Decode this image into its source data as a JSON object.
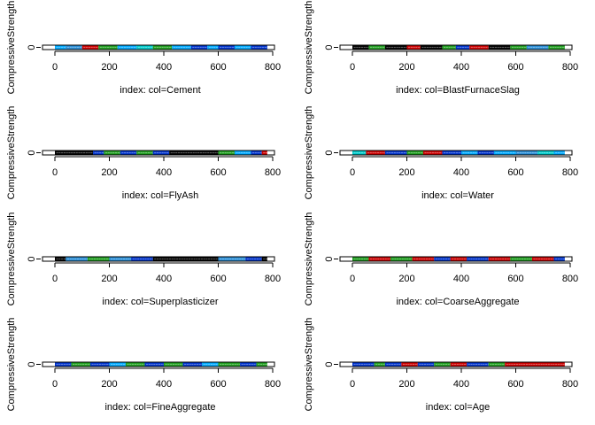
{
  "chart_data": [
    {
      "type": "scatter",
      "title": "",
      "xlabel": "index: col=Cement",
      "ylabel": "CompressiveStrength",
      "xlim": [
        -30,
        810
      ],
      "x_ticks": [
        "0",
        "200",
        "400",
        "600",
        "800"
      ],
      "y_ticks": [
        "0"
      ],
      "strip_colors": [
        {
          "from": 0,
          "to": 40,
          "color": "#00aaff"
        },
        {
          "from": 40,
          "to": 100,
          "color": "#2a8fd8"
        },
        {
          "from": 100,
          "to": 160,
          "color": "#cc0000"
        },
        {
          "from": 160,
          "to": 230,
          "color": "#1f9e1f"
        },
        {
          "from": 230,
          "to": 300,
          "color": "#00aaff"
        },
        {
          "from": 300,
          "to": 360,
          "color": "#00cccc"
        },
        {
          "from": 360,
          "to": 430,
          "color": "#1f9e1f"
        },
        {
          "from": 430,
          "to": 500,
          "color": "#00aaff"
        },
        {
          "from": 500,
          "to": 560,
          "color": "#0033cc"
        },
        {
          "from": 560,
          "to": 600,
          "color": "#00aaff"
        },
        {
          "from": 600,
          "to": 660,
          "color": "#0033cc"
        },
        {
          "from": 660,
          "to": 720,
          "color": "#00aaff"
        },
        {
          "from": 720,
          "to": 780,
          "color": "#0033cc"
        }
      ]
    },
    {
      "type": "scatter",
      "title": "",
      "xlabel": "index: col=BlastFurnaceSlag",
      "ylabel": "CompressiveStrength",
      "xlim": [
        -30,
        810
      ],
      "x_ticks": [
        "0",
        "200",
        "400",
        "600",
        "800"
      ],
      "y_ticks": [
        "0"
      ],
      "strip_colors": [
        {
          "from": 0,
          "to": 60,
          "color": "#000000"
        },
        {
          "from": 60,
          "to": 120,
          "color": "#1f9e1f"
        },
        {
          "from": 120,
          "to": 200,
          "color": "#000000"
        },
        {
          "from": 200,
          "to": 250,
          "color": "#cc0000"
        },
        {
          "from": 250,
          "to": 330,
          "color": "#000000"
        },
        {
          "from": 330,
          "to": 380,
          "color": "#1f9e1f"
        },
        {
          "from": 380,
          "to": 430,
          "color": "#0033cc"
        },
        {
          "from": 430,
          "to": 500,
          "color": "#cc0000"
        },
        {
          "from": 500,
          "to": 580,
          "color": "#000000"
        },
        {
          "from": 580,
          "to": 640,
          "color": "#1f9e1f"
        },
        {
          "from": 640,
          "to": 720,
          "color": "#2a8fd8"
        },
        {
          "from": 720,
          "to": 780,
          "color": "#1f9e1f"
        }
      ]
    },
    {
      "type": "scatter",
      "title": "",
      "xlabel": "index: col=FlyAsh",
      "ylabel": "CompressiveStrength",
      "xlim": [
        -30,
        810
      ],
      "x_ticks": [
        "0",
        "200",
        "400",
        "600",
        "800"
      ],
      "y_ticks": [
        "0"
      ],
      "strip_colors": [
        {
          "from": 0,
          "to": 140,
          "color": "#000000"
        },
        {
          "from": 140,
          "to": 180,
          "color": "#0033cc"
        },
        {
          "from": 180,
          "to": 240,
          "color": "#1f9e1f"
        },
        {
          "from": 240,
          "to": 300,
          "color": "#0033cc"
        },
        {
          "from": 300,
          "to": 360,
          "color": "#1f9e1f"
        },
        {
          "from": 360,
          "to": 420,
          "color": "#0033cc"
        },
        {
          "from": 420,
          "to": 600,
          "color": "#000000"
        },
        {
          "from": 600,
          "to": 660,
          "color": "#1f9e1f"
        },
        {
          "from": 660,
          "to": 720,
          "color": "#00aaff"
        },
        {
          "from": 720,
          "to": 760,
          "color": "#0033cc"
        },
        {
          "from": 760,
          "to": 780,
          "color": "#cc0000"
        }
      ]
    },
    {
      "type": "scatter",
      "title": "",
      "xlabel": "index: col=Water",
      "ylabel": "CompressiveStrength",
      "xlim": [
        -30,
        810
      ],
      "x_ticks": [
        "0",
        "200",
        "400",
        "600",
        "800"
      ],
      "y_ticks": [
        "0"
      ],
      "strip_colors": [
        {
          "from": 0,
          "to": 50,
          "color": "#00cccc"
        },
        {
          "from": 50,
          "to": 120,
          "color": "#cc0000"
        },
        {
          "from": 120,
          "to": 200,
          "color": "#0033cc"
        },
        {
          "from": 200,
          "to": 260,
          "color": "#1f9e1f"
        },
        {
          "from": 260,
          "to": 330,
          "color": "#cc0000"
        },
        {
          "from": 330,
          "to": 400,
          "color": "#0033cc"
        },
        {
          "from": 400,
          "to": 460,
          "color": "#00aaff"
        },
        {
          "from": 460,
          "to": 520,
          "color": "#0033cc"
        },
        {
          "from": 520,
          "to": 600,
          "color": "#00aaff"
        },
        {
          "from": 600,
          "to": 680,
          "color": "#2a8fd8"
        },
        {
          "from": 680,
          "to": 740,
          "color": "#00cccc"
        },
        {
          "from": 740,
          "to": 780,
          "color": "#00aaff"
        }
      ]
    },
    {
      "type": "scatter",
      "title": "",
      "xlabel": "index: col=Superplasticizer",
      "ylabel": "CompressiveStrength",
      "xlim": [
        -30,
        810
      ],
      "x_ticks": [
        "0",
        "200",
        "400",
        "600",
        "800"
      ],
      "y_ticks": [
        "0"
      ],
      "strip_colors": [
        {
          "from": 0,
          "to": 40,
          "color": "#000000"
        },
        {
          "from": 40,
          "to": 120,
          "color": "#2a8fd8"
        },
        {
          "from": 120,
          "to": 200,
          "color": "#1f9e1f"
        },
        {
          "from": 200,
          "to": 280,
          "color": "#2a8fd8"
        },
        {
          "from": 280,
          "to": 360,
          "color": "#0033cc"
        },
        {
          "from": 360,
          "to": 600,
          "color": "#000000"
        },
        {
          "from": 600,
          "to": 700,
          "color": "#2a8fd8"
        },
        {
          "from": 700,
          "to": 760,
          "color": "#0033cc"
        },
        {
          "from": 760,
          "to": 780,
          "color": "#000000"
        }
      ]
    },
    {
      "type": "scatter",
      "title": "",
      "xlabel": "index: col=CoarseAggregate",
      "ylabel": "CompressiveStrength",
      "xlim": [
        -30,
        810
      ],
      "x_ticks": [
        "0",
        "200",
        "400",
        "600",
        "800"
      ],
      "y_ticks": [
        "0"
      ],
      "strip_colors": [
        {
          "from": 0,
          "to": 60,
          "color": "#1f9e1f"
        },
        {
          "from": 60,
          "to": 140,
          "color": "#cc0000"
        },
        {
          "from": 140,
          "to": 220,
          "color": "#1f9e1f"
        },
        {
          "from": 220,
          "to": 300,
          "color": "#cc0000"
        },
        {
          "from": 300,
          "to": 360,
          "color": "#0033cc"
        },
        {
          "from": 360,
          "to": 420,
          "color": "#cc0000"
        },
        {
          "from": 420,
          "to": 500,
          "color": "#0033cc"
        },
        {
          "from": 500,
          "to": 580,
          "color": "#cc0000"
        },
        {
          "from": 580,
          "to": 660,
          "color": "#1f9e1f"
        },
        {
          "from": 660,
          "to": 740,
          "color": "#cc0000"
        },
        {
          "from": 740,
          "to": 780,
          "color": "#0033cc"
        }
      ]
    },
    {
      "type": "scatter",
      "title": "",
      "xlabel": "index: col=FineAggregate",
      "ylabel": "CompressiveStrength",
      "xlim": [
        -30,
        810
      ],
      "x_ticks": [
        "0",
        "200",
        "400",
        "600",
        "800"
      ],
      "y_ticks": [
        "0"
      ],
      "strip_colors": [
        {
          "from": 0,
          "to": 60,
          "color": "#0033cc"
        },
        {
          "from": 60,
          "to": 130,
          "color": "#1f9e1f"
        },
        {
          "from": 130,
          "to": 200,
          "color": "#0033cc"
        },
        {
          "from": 200,
          "to": 260,
          "color": "#00aaff"
        },
        {
          "from": 260,
          "to": 330,
          "color": "#1f9e1f"
        },
        {
          "from": 330,
          "to": 400,
          "color": "#0033cc"
        },
        {
          "from": 400,
          "to": 470,
          "color": "#1f9e1f"
        },
        {
          "from": 470,
          "to": 540,
          "color": "#0033cc"
        },
        {
          "from": 540,
          "to": 600,
          "color": "#00aaff"
        },
        {
          "from": 600,
          "to": 680,
          "color": "#1f9e1f"
        },
        {
          "from": 680,
          "to": 740,
          "color": "#0033cc"
        },
        {
          "from": 740,
          "to": 780,
          "color": "#1f9e1f"
        }
      ]
    },
    {
      "type": "scatter",
      "title": "",
      "xlabel": "index: col=Age",
      "ylabel": "CompressiveStrength",
      "xlim": [
        -30,
        810
      ],
      "x_ticks": [
        "0",
        "200",
        "400",
        "600",
        "800"
      ],
      "y_ticks": [
        "0"
      ],
      "strip_colors": [
        {
          "from": 0,
          "to": 80,
          "color": "#0033cc"
        },
        {
          "from": 80,
          "to": 120,
          "color": "#1f9e1f"
        },
        {
          "from": 120,
          "to": 180,
          "color": "#0033cc"
        },
        {
          "from": 180,
          "to": 240,
          "color": "#cc0000"
        },
        {
          "from": 240,
          "to": 300,
          "color": "#0033cc"
        },
        {
          "from": 300,
          "to": 360,
          "color": "#1f9e1f"
        },
        {
          "from": 360,
          "to": 420,
          "color": "#cc0000"
        },
        {
          "from": 420,
          "to": 500,
          "color": "#0033cc"
        },
        {
          "from": 500,
          "to": 560,
          "color": "#1f9e1f"
        },
        {
          "from": 560,
          "to": 780,
          "color": "#cc0000"
        }
      ]
    }
  ]
}
